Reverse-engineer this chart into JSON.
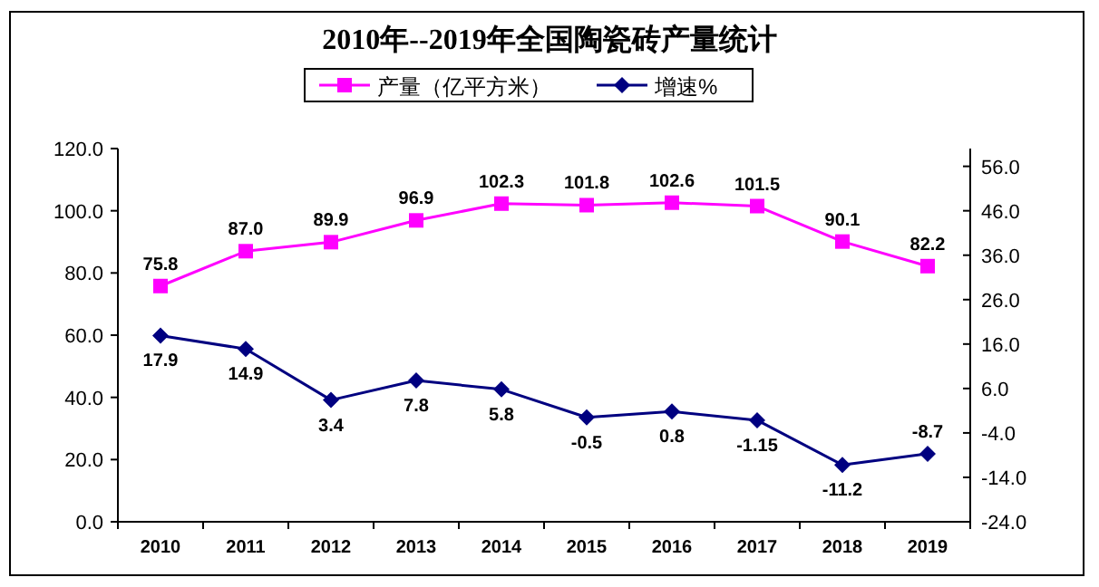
{
  "chart_data": {
    "type": "line",
    "title": "2010年--2019年全国陶瓷砖产量统计",
    "categories": [
      "2010",
      "2011",
      "2012",
      "2013",
      "2014",
      "2015",
      "2016",
      "2017",
      "2018",
      "2019"
    ],
    "series": [
      {
        "name": "产量（亿平方米）",
        "color": "#ff00ff",
        "marker": "square",
        "axis": "y",
        "values": [
          75.8,
          87.0,
          89.9,
          96.9,
          102.3,
          101.8,
          102.6,
          101.5,
          90.1,
          82.2
        ],
        "value_labels": [
          "75.8",
          "87.0",
          "89.9",
          "96.9",
          "102.3",
          "101.8",
          "102.6",
          "101.5",
          "90.1",
          "82.2"
        ]
      },
      {
        "name": "增速%",
        "color": "#000080",
        "marker": "diamond",
        "axis": "y2",
        "values": [
          17.9,
          14.9,
          3.4,
          7.8,
          5.8,
          -0.5,
          0.8,
          -1.15,
          -11.2,
          -8.7
        ]
      }
    ],
    "data_labels": true,
    "legend": "top",
    "ylim": [
      0,
      120
    ],
    "yticks": [
      {
        "value": 0,
        "label": "0.0"
      },
      {
        "value": 20,
        "label": "20.0"
      },
      {
        "value": 40,
        "label": "40.0"
      },
      {
        "value": 60,
        "label": "60.0"
      },
      {
        "value": 80,
        "label": "80.0"
      },
      {
        "value": 100,
        "label": "100.0"
      },
      {
        "value": 120,
        "label": "120.0"
      }
    ],
    "y2lim": [
      -24,
      60
    ],
    "y2ticks": [
      {
        "value": -24,
        "label": "-24.0"
      },
      {
        "value": -14,
        "label": "-14.0"
      },
      {
        "value": -4,
        "label": "-4.0"
      },
      {
        "value": 6,
        "label": "6.0"
      },
      {
        "value": 16,
        "label": "16.0"
      },
      {
        "value": 26,
        "label": "26.0"
      },
      {
        "value": 36,
        "label": "36.0"
      },
      {
        "value": 46,
        "label": "46.0"
      },
      {
        "value": 56,
        "label": "56.0"
      }
    ]
  }
}
